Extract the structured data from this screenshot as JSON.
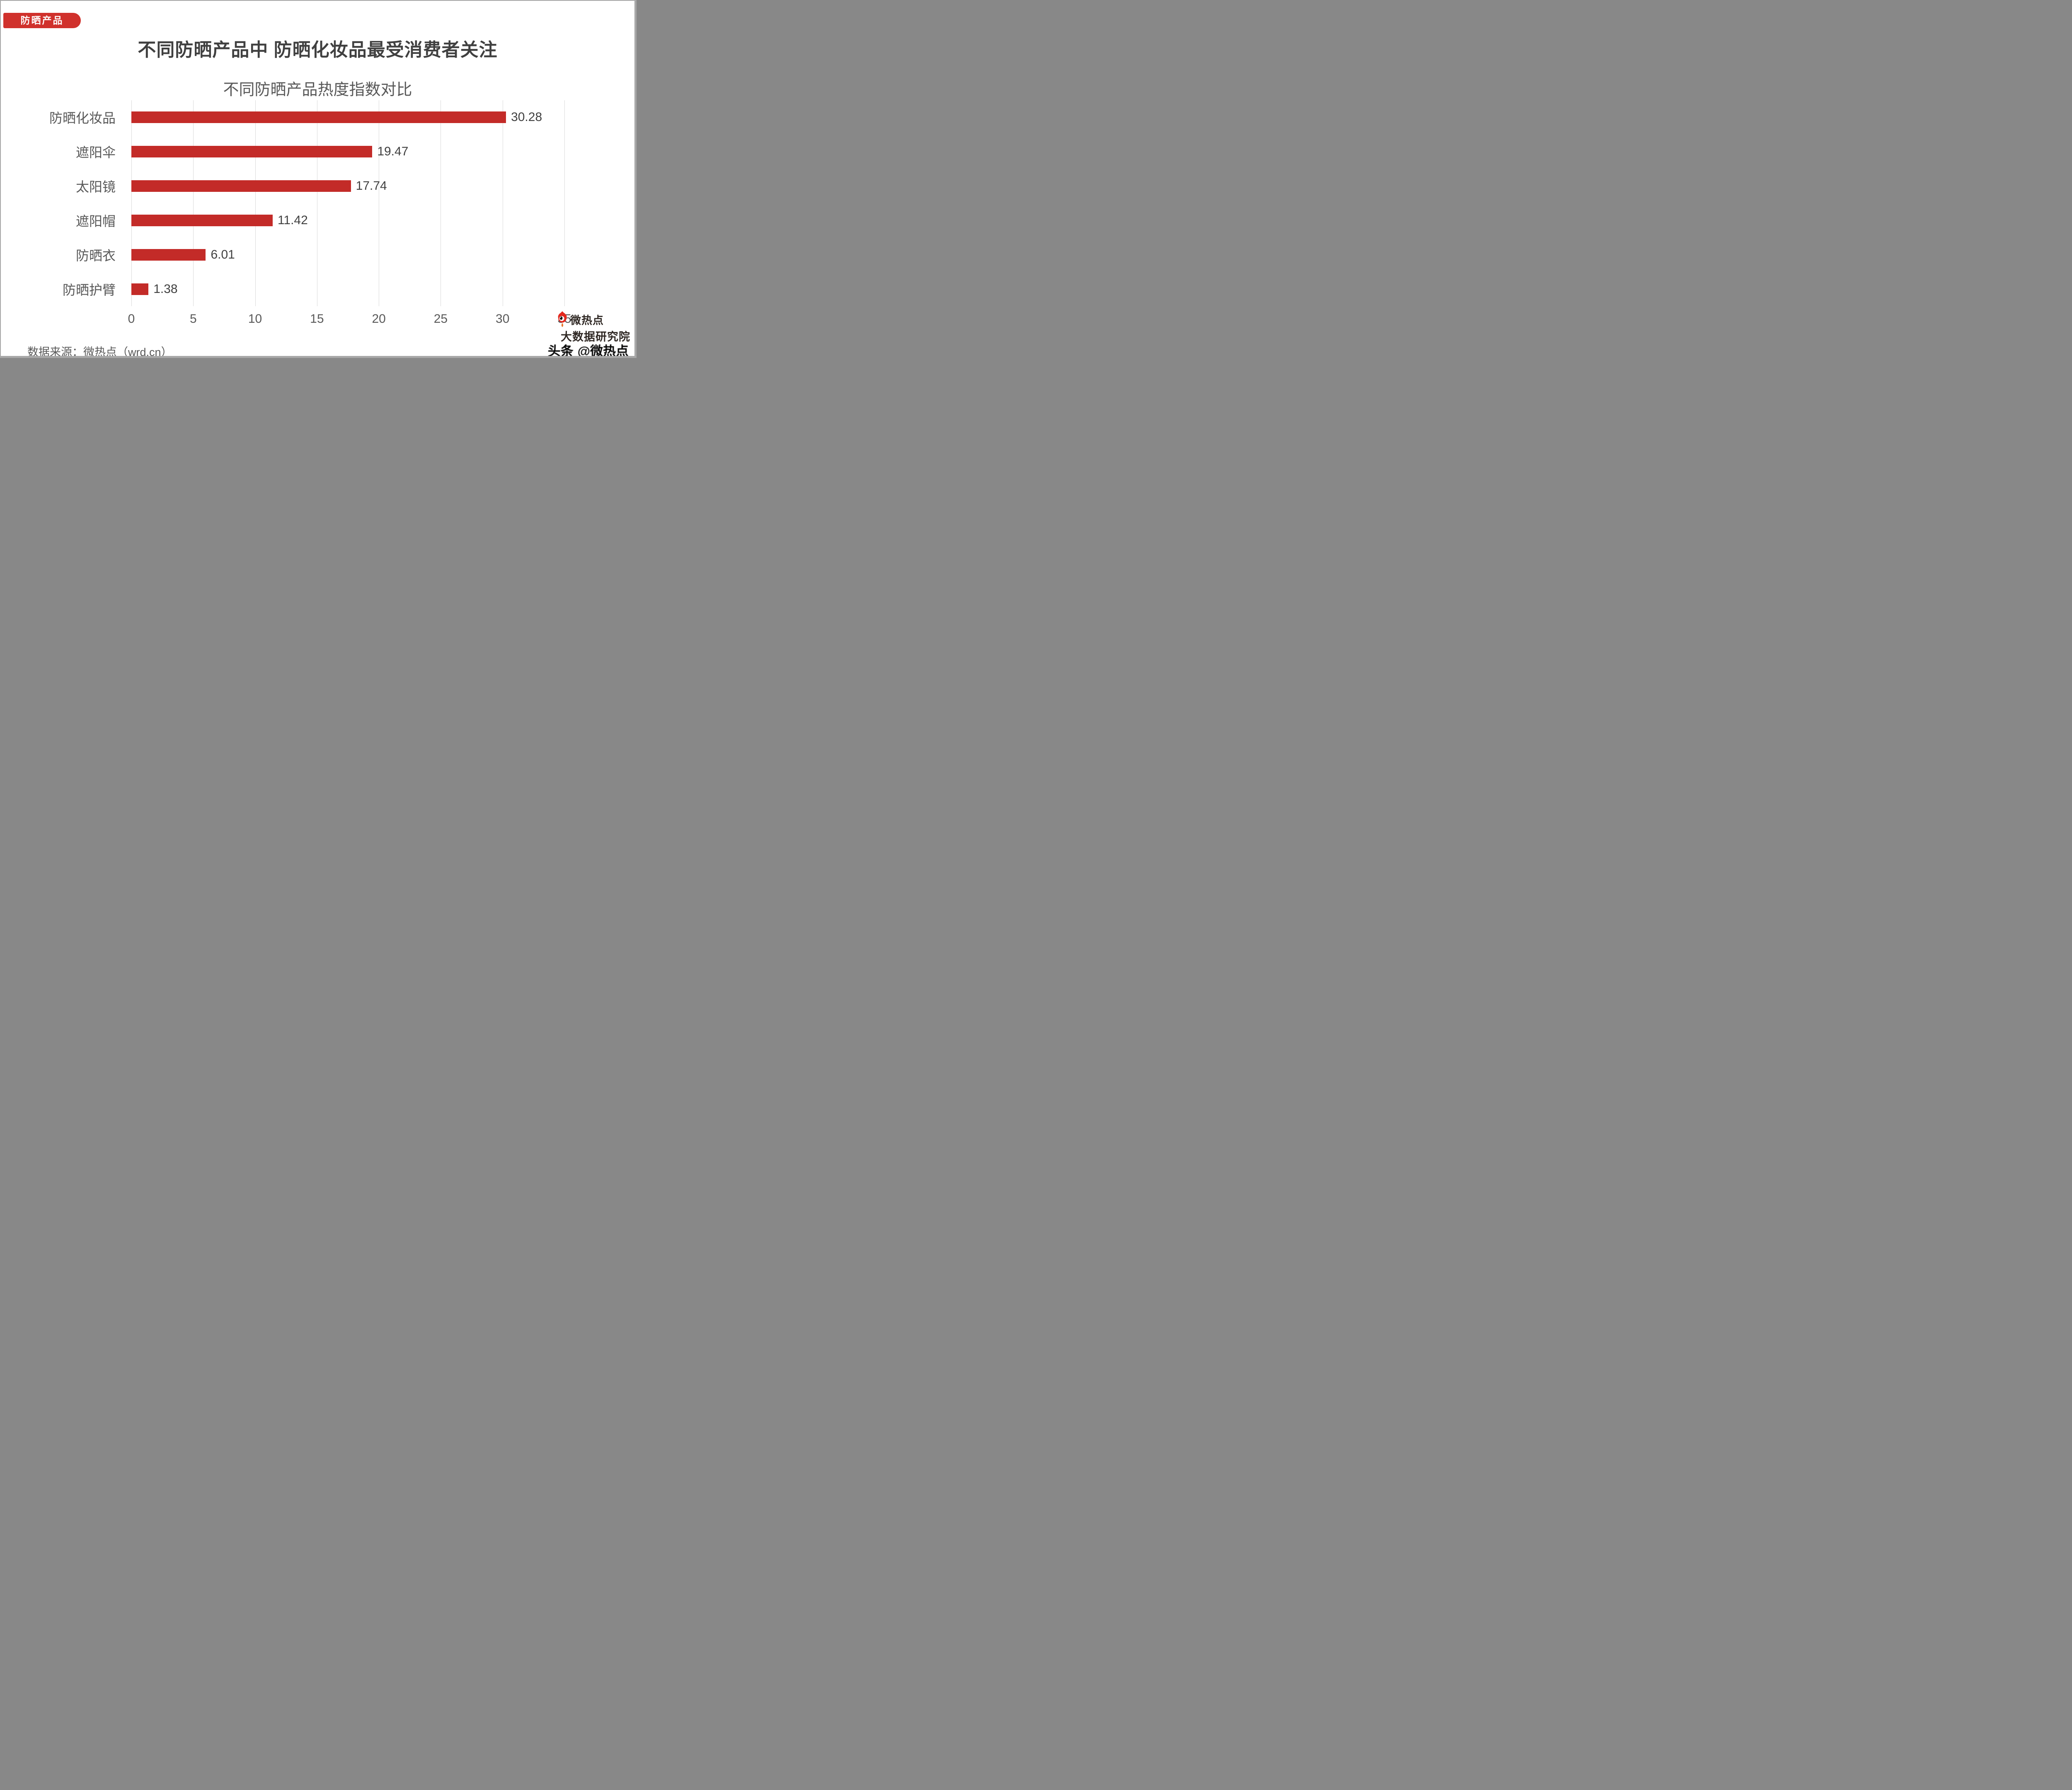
{
  "page": {
    "badge": "防晒产品",
    "title": "不同防晒产品中 防晒化妆品最受消费者关注",
    "source": "数据来源：微热点（wrd.cn）"
  },
  "chart_data": {
    "type": "bar",
    "orientation": "horizontal",
    "title": "不同防晒产品热度指数对比",
    "categories": [
      "防晒化妆品",
      "遮阳伞",
      "太阳镜",
      "遮阳帽",
      "防晒衣",
      "防晒护臂"
    ],
    "values": [
      30.28,
      19.47,
      17.74,
      11.42,
      6.01,
      1.38
    ],
    "value_labels": [
      "30.28",
      "19.47",
      "17.74",
      "11.42",
      "6.01",
      "1.38"
    ],
    "xlim": [
      0,
      35
    ],
    "x_ticks": [
      0,
      5,
      10,
      15,
      20,
      25,
      30,
      35
    ],
    "grid": true,
    "legend": "none"
  },
  "watermark": {
    "brand": "微热点",
    "institute": "大数据研究院",
    "platform": "头条",
    "account": "@微热点"
  },
  "colors": {
    "bar": "#c32b28",
    "badge": "#d0312c",
    "grid": "#d9d9d9",
    "title": "#404040",
    "muted": "#595959",
    "logo_dark": "#2e2723",
    "logo_red": "#e3281e",
    "logo_orange": "#e8762c",
    "frame": "#a8a8a8"
  }
}
